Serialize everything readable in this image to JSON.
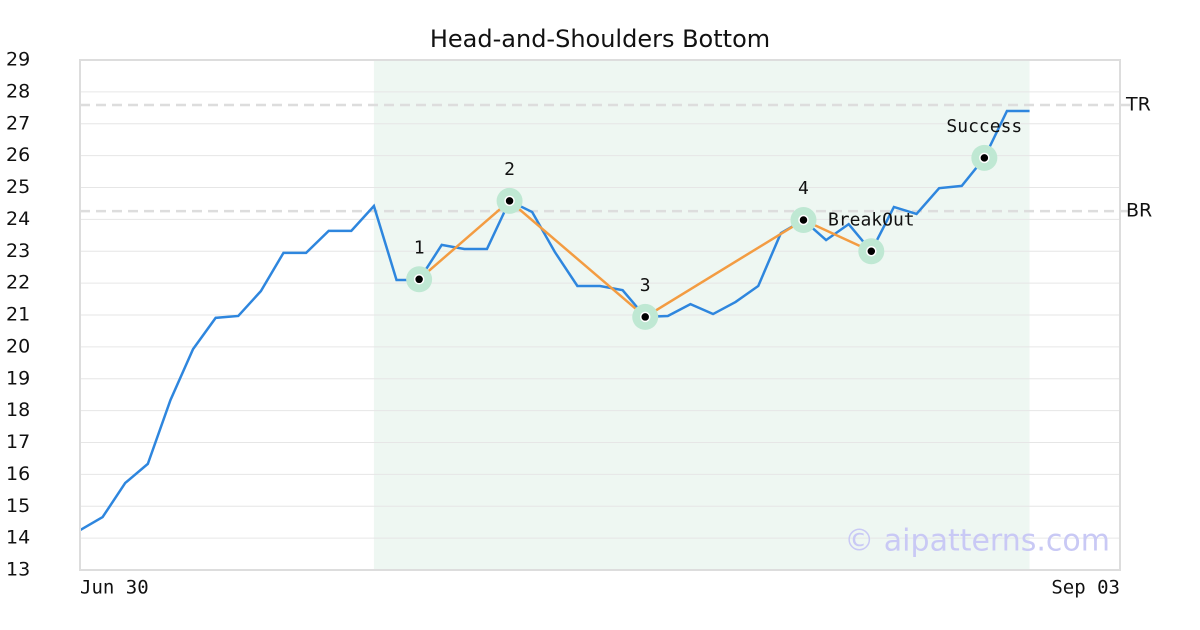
{
  "chart_data": {
    "type": "line",
    "title": "Head-and-Shoulders Bottom",
    "x": [
      0,
      1,
      2,
      3,
      4,
      5,
      6,
      7,
      8,
      9,
      10,
      11,
      12,
      13,
      14,
      15,
      16,
      17,
      18,
      19,
      20,
      21,
      22,
      23,
      24,
      25,
      26,
      27,
      28,
      29,
      30,
      31,
      32,
      33,
      34,
      35,
      36,
      37,
      38,
      39,
      40,
      41,
      42
    ],
    "series": [
      {
        "color": "#2e86de",
        "values": [
          14.25,
          14.66,
          15.73,
          16.33,
          18.33,
          19.93,
          20.91,
          20.97,
          21.75,
          22.95,
          22.95,
          23.64,
          23.64,
          24.42,
          22.1,
          22.1,
          23.2,
          23.07,
          23.07,
          24.58,
          24.23,
          22.98,
          21.91,
          21.91,
          21.78,
          20.94,
          20.97,
          21.34,
          21.03,
          21.41,
          21.91,
          23.57,
          23.98,
          23.35,
          23.85,
          23.0,
          24.39,
          24.17,
          24.98,
          25.05,
          25.93,
          27.4,
          27.4
        ]
      }
    ],
    "xlim": [
      0,
      46
    ],
    "xticks": [
      {
        "value": 0,
        "label": "Jun 30"
      },
      {
        "value": 46,
        "label": "Sep 03"
      }
    ],
    "ylim": [
      13,
      29
    ],
    "yticks": [
      13,
      14,
      15,
      16,
      17,
      18,
      19,
      20,
      21,
      22,
      23,
      24,
      25,
      26,
      27,
      28,
      29
    ],
    "grid": true,
    "highlight": [
      13,
      42
    ],
    "highlight_color": "#eef7f2",
    "pattern": {
      "color": "#f39c42",
      "points": [
        {
          "label": "1",
          "x": 15,
          "y": 22.12
        },
        {
          "label": "2",
          "x": 19,
          "y": 24.58
        },
        {
          "label": "3",
          "x": 25,
          "y": 20.94
        },
        {
          "label": "4",
          "x": 32,
          "y": 23.98
        },
        {
          "label": "BreakOut",
          "x": 35,
          "y": 23.0
        }
      ]
    },
    "target": {
      "label": "Success",
      "x": 40,
      "y": 25.93
    },
    "levels": [
      {
        "label": "TR",
        "value": 27.59
      },
      {
        "label": "BR",
        "value": 24.26
      }
    ],
    "watermark": "© aipatterns.com"
  }
}
